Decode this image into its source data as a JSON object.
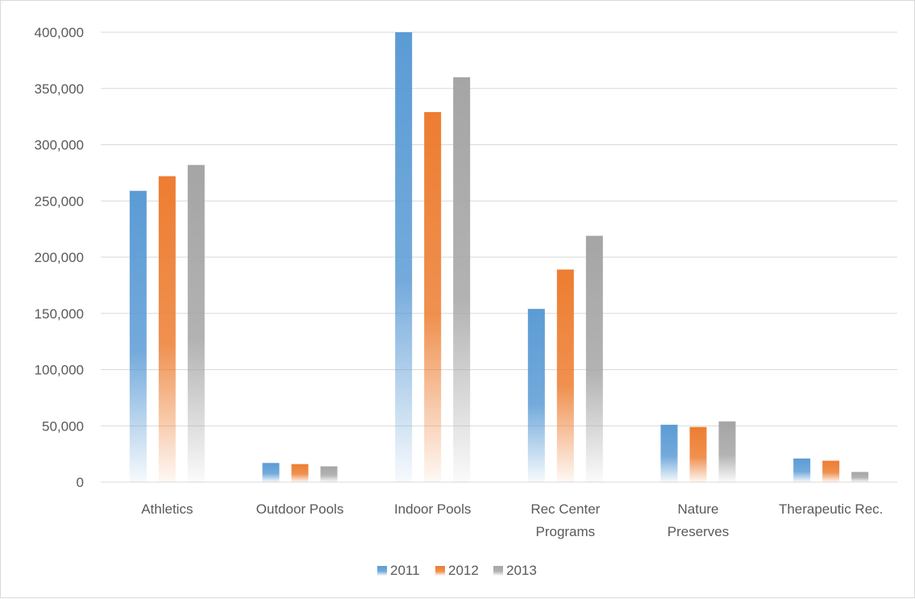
{
  "chart_data": {
    "type": "bar",
    "title": "",
    "xlabel": "",
    "ylabel": "",
    "categories": [
      [
        "Athletics"
      ],
      [
        "Outdoor Pools"
      ],
      [
        "Indoor Pools"
      ],
      [
        "Rec Center",
        "Programs"
      ],
      [
        "Nature",
        "Preserves"
      ],
      [
        "Therapeutic Rec."
      ]
    ],
    "series": [
      {
        "name": "2011",
        "color": "#5b9bd5",
        "values": [
          259000,
          17000,
          400000,
          154000,
          51000,
          21000
        ]
      },
      {
        "name": "2012",
        "color": "#ed7d31",
        "values": [
          272000,
          16000,
          329000,
          189000,
          49000,
          19000
        ]
      },
      {
        "name": "2013",
        "color": "#a5a5a5",
        "values": [
          282000,
          14000,
          360000,
          219000,
          54000,
          9000
        ]
      }
    ],
    "ylim": [
      0,
      400000
    ],
    "yticks": [
      0,
      50000,
      100000,
      150000,
      200000,
      250000,
      300000,
      350000,
      400000
    ],
    "ytick_labels": [
      "0",
      "50,000",
      "100,000",
      "150,000",
      "200,000",
      "250,000",
      "300,000",
      "350,000",
      "400,000"
    ],
    "grid": true,
    "legend": "bottom-center",
    "gridline_color": "#d9d9d9"
  }
}
